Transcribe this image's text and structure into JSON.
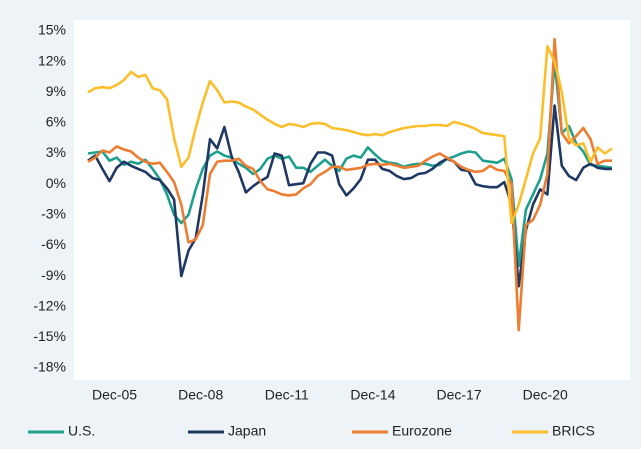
{
  "chart_data": {
    "type": "line",
    "categories": [
      null,
      null,
      null,
      "Dec-05",
      null,
      null,
      null,
      null,
      null,
      null,
      null,
      null,
      null,
      null,
      null,
      "Dec-08",
      null,
      null,
      null,
      null,
      null,
      null,
      null,
      null,
      null,
      null,
      null,
      "Dec-11",
      null,
      null,
      null,
      null,
      null,
      null,
      null,
      null,
      null,
      null,
      null,
      "Dec-14",
      null,
      null,
      null,
      null,
      null,
      null,
      null,
      null,
      null,
      null,
      null,
      "Dec-17",
      null,
      null,
      null,
      null,
      null,
      null,
      null,
      null,
      null,
      null,
      null,
      "Dec-20",
      null,
      null,
      null,
      null,
      null,
      null,
      null,
      null,
      null,
      null
    ],
    "series": [
      {
        "name": "U.S.",
        "color": "#1fa08e",
        "values": [
          3.0,
          3.1,
          3.2,
          2.3,
          2.6,
          1.9,
          2.2,
          2.0,
          2.4,
          1.5,
          0.5,
          -1.0,
          -3.0,
          -3.8,
          -3.0,
          -0.5,
          1.5,
          2.8,
          3.2,
          2.8,
          2.6,
          2.0,
          1.6,
          1.0,
          1.5,
          2.5,
          2.8,
          2.5,
          2.7,
          1.6,
          1.6,
          1.2,
          1.8,
          2.4,
          1.8,
          1.3,
          2.5,
          2.8,
          2.6,
          3.6,
          2.9,
          2.3,
          2.1,
          2.0,
          1.7,
          1.9,
          2.0,
          2.0,
          1.8,
          1.9,
          2.5,
          2.7,
          3.0,
          3.2,
          3.1,
          2.3,
          2.2,
          2.1,
          2.5,
          0.5,
          -8.0,
          -2.5,
          -1.0,
          0.5,
          3.0,
          12.0,
          5.0,
          5.7,
          4.0,
          3.2,
          1.9,
          1.8,
          1.7,
          1.6
        ]
      },
      {
        "name": "Japan",
        "color": "#1f3864",
        "values": [
          2.3,
          2.8,
          1.5,
          0.3,
          1.6,
          2.2,
          1.8,
          1.5,
          1.2,
          0.6,
          0.4,
          -0.4,
          -1.5,
          -9.0,
          -6.5,
          -5.3,
          -1.0,
          4.4,
          3.5,
          5.6,
          2.7,
          1.2,
          -0.8,
          -0.2,
          0.3,
          0.7,
          3.0,
          2.8,
          -0.1,
          0.0,
          0.1,
          2.0,
          3.1,
          3.1,
          2.8,
          0.0,
          -1.1,
          -0.4,
          0.5,
          2.4,
          2.4,
          1.5,
          1.3,
          0.8,
          0.5,
          0.6,
          1.0,
          1.1,
          1.5,
          2.1,
          2.5,
          2.2,
          1.4,
          1.3,
          0.0,
          -0.2,
          -0.3,
          -0.3,
          0.2,
          -2.0,
          -10.0,
          -4.5,
          -2.0,
          -0.5,
          -1.0,
          7.7,
          1.8,
          0.8,
          0.4,
          1.6,
          2.0,
          1.6,
          1.5,
          1.5
        ]
      },
      {
        "name": "Eurozone",
        "color": "#ed7d31",
        "values": [
          2.2,
          2.6,
          3.3,
          3.1,
          3.7,
          3.4,
          3.2,
          2.6,
          2.2,
          2.0,
          2.1,
          1.2,
          0.2,
          -2.0,
          -5.7,
          -5.4,
          -4.0,
          1.0,
          2.2,
          2.3,
          2.3,
          2.5,
          1.8,
          1.5,
          0.3,
          -0.5,
          -0.7,
          -1.0,
          -1.1,
          -1.0,
          -0.4,
          0.0,
          0.8,
          1.2,
          1.7,
          1.7,
          1.4,
          1.5,
          1.6,
          1.9,
          2.0,
          1.9,
          2.0,
          1.8,
          1.6,
          1.7,
          1.8,
          2.3,
          2.7,
          3.0,
          2.6,
          2.2,
          1.7,
          1.4,
          1.2,
          1.3,
          1.8,
          1.4,
          1.3,
          0.0,
          -14.3,
          -4.0,
          -3.5,
          -2.0,
          1.0,
          14.2,
          5.0,
          4.0,
          4.7,
          5.5,
          4.4,
          2.0,
          2.3,
          2.3
        ]
      },
      {
        "name": "BRICS",
        "color": "#fcbf2c",
        "values": [
          9.0,
          9.4,
          9.5,
          9.4,
          9.7,
          10.2,
          11.0,
          10.5,
          10.7,
          9.4,
          9.2,
          8.3,
          4.5,
          1.7,
          2.6,
          5.5,
          8.0,
          10.1,
          9.2,
          8.0,
          8.1,
          8.0,
          7.6,
          7.3,
          6.8,
          6.3,
          5.9,
          5.6,
          5.9,
          5.8,
          5.6,
          5.9,
          6.0,
          5.9,
          5.5,
          5.4,
          5.3,
          5.1,
          4.9,
          4.8,
          4.9,
          4.8,
          5.1,
          5.3,
          5.5,
          5.6,
          5.7,
          5.7,
          5.8,
          5.8,
          5.7,
          6.1,
          5.9,
          5.7,
          5.4,
          5.0,
          4.9,
          4.8,
          4.7,
          -3.8,
          -2.0,
          0.5,
          3.0,
          4.5,
          13.5,
          12.0,
          9.0,
          4.5,
          3.8,
          4.0,
          2.2,
          3.6,
          3.0,
          3.5
        ]
      }
    ],
    "ylim": [
      -18,
      15
    ],
    "yticks": [
      {
        "value": -18,
        "label": "-18%"
      },
      {
        "value": -15,
        "label": "-15%"
      },
      {
        "value": -12,
        "label": "-12%"
      },
      {
        "value": -9,
        "label": "-9%"
      },
      {
        "value": -6,
        "label": "-6%"
      },
      {
        "value": -3,
        "label": "-3%"
      },
      {
        "value": 0,
        "label": "0%"
      },
      {
        "value": 3,
        "label": "3%"
      },
      {
        "value": 6,
        "label": "6%"
      },
      {
        "value": 9,
        "label": "9%"
      },
      {
        "value": 12,
        "label": "12%"
      },
      {
        "value": 15,
        "label": "15%"
      }
    ],
    "grid": false,
    "legend": "bottom"
  }
}
